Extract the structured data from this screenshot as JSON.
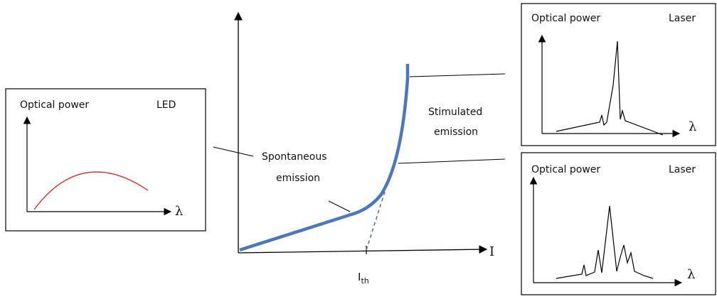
{
  "led": {
    "y_label": "Optical power",
    "name": "LED",
    "x_label": "λ"
  },
  "laser_top": {
    "y_label": "Optical power",
    "name": "Laser",
    "x_label": "λ"
  },
  "laser_bottom": {
    "y_label": "Optical power",
    "name": "Laser",
    "x_label": "λ"
  },
  "main": {
    "x_label": "I",
    "threshold": {
      "main": "I",
      "sub": "th"
    },
    "spontaneous": [
      "Spontaneous",
      "emission"
    ],
    "stimulated": [
      "Stimulated",
      "emission"
    ]
  }
}
